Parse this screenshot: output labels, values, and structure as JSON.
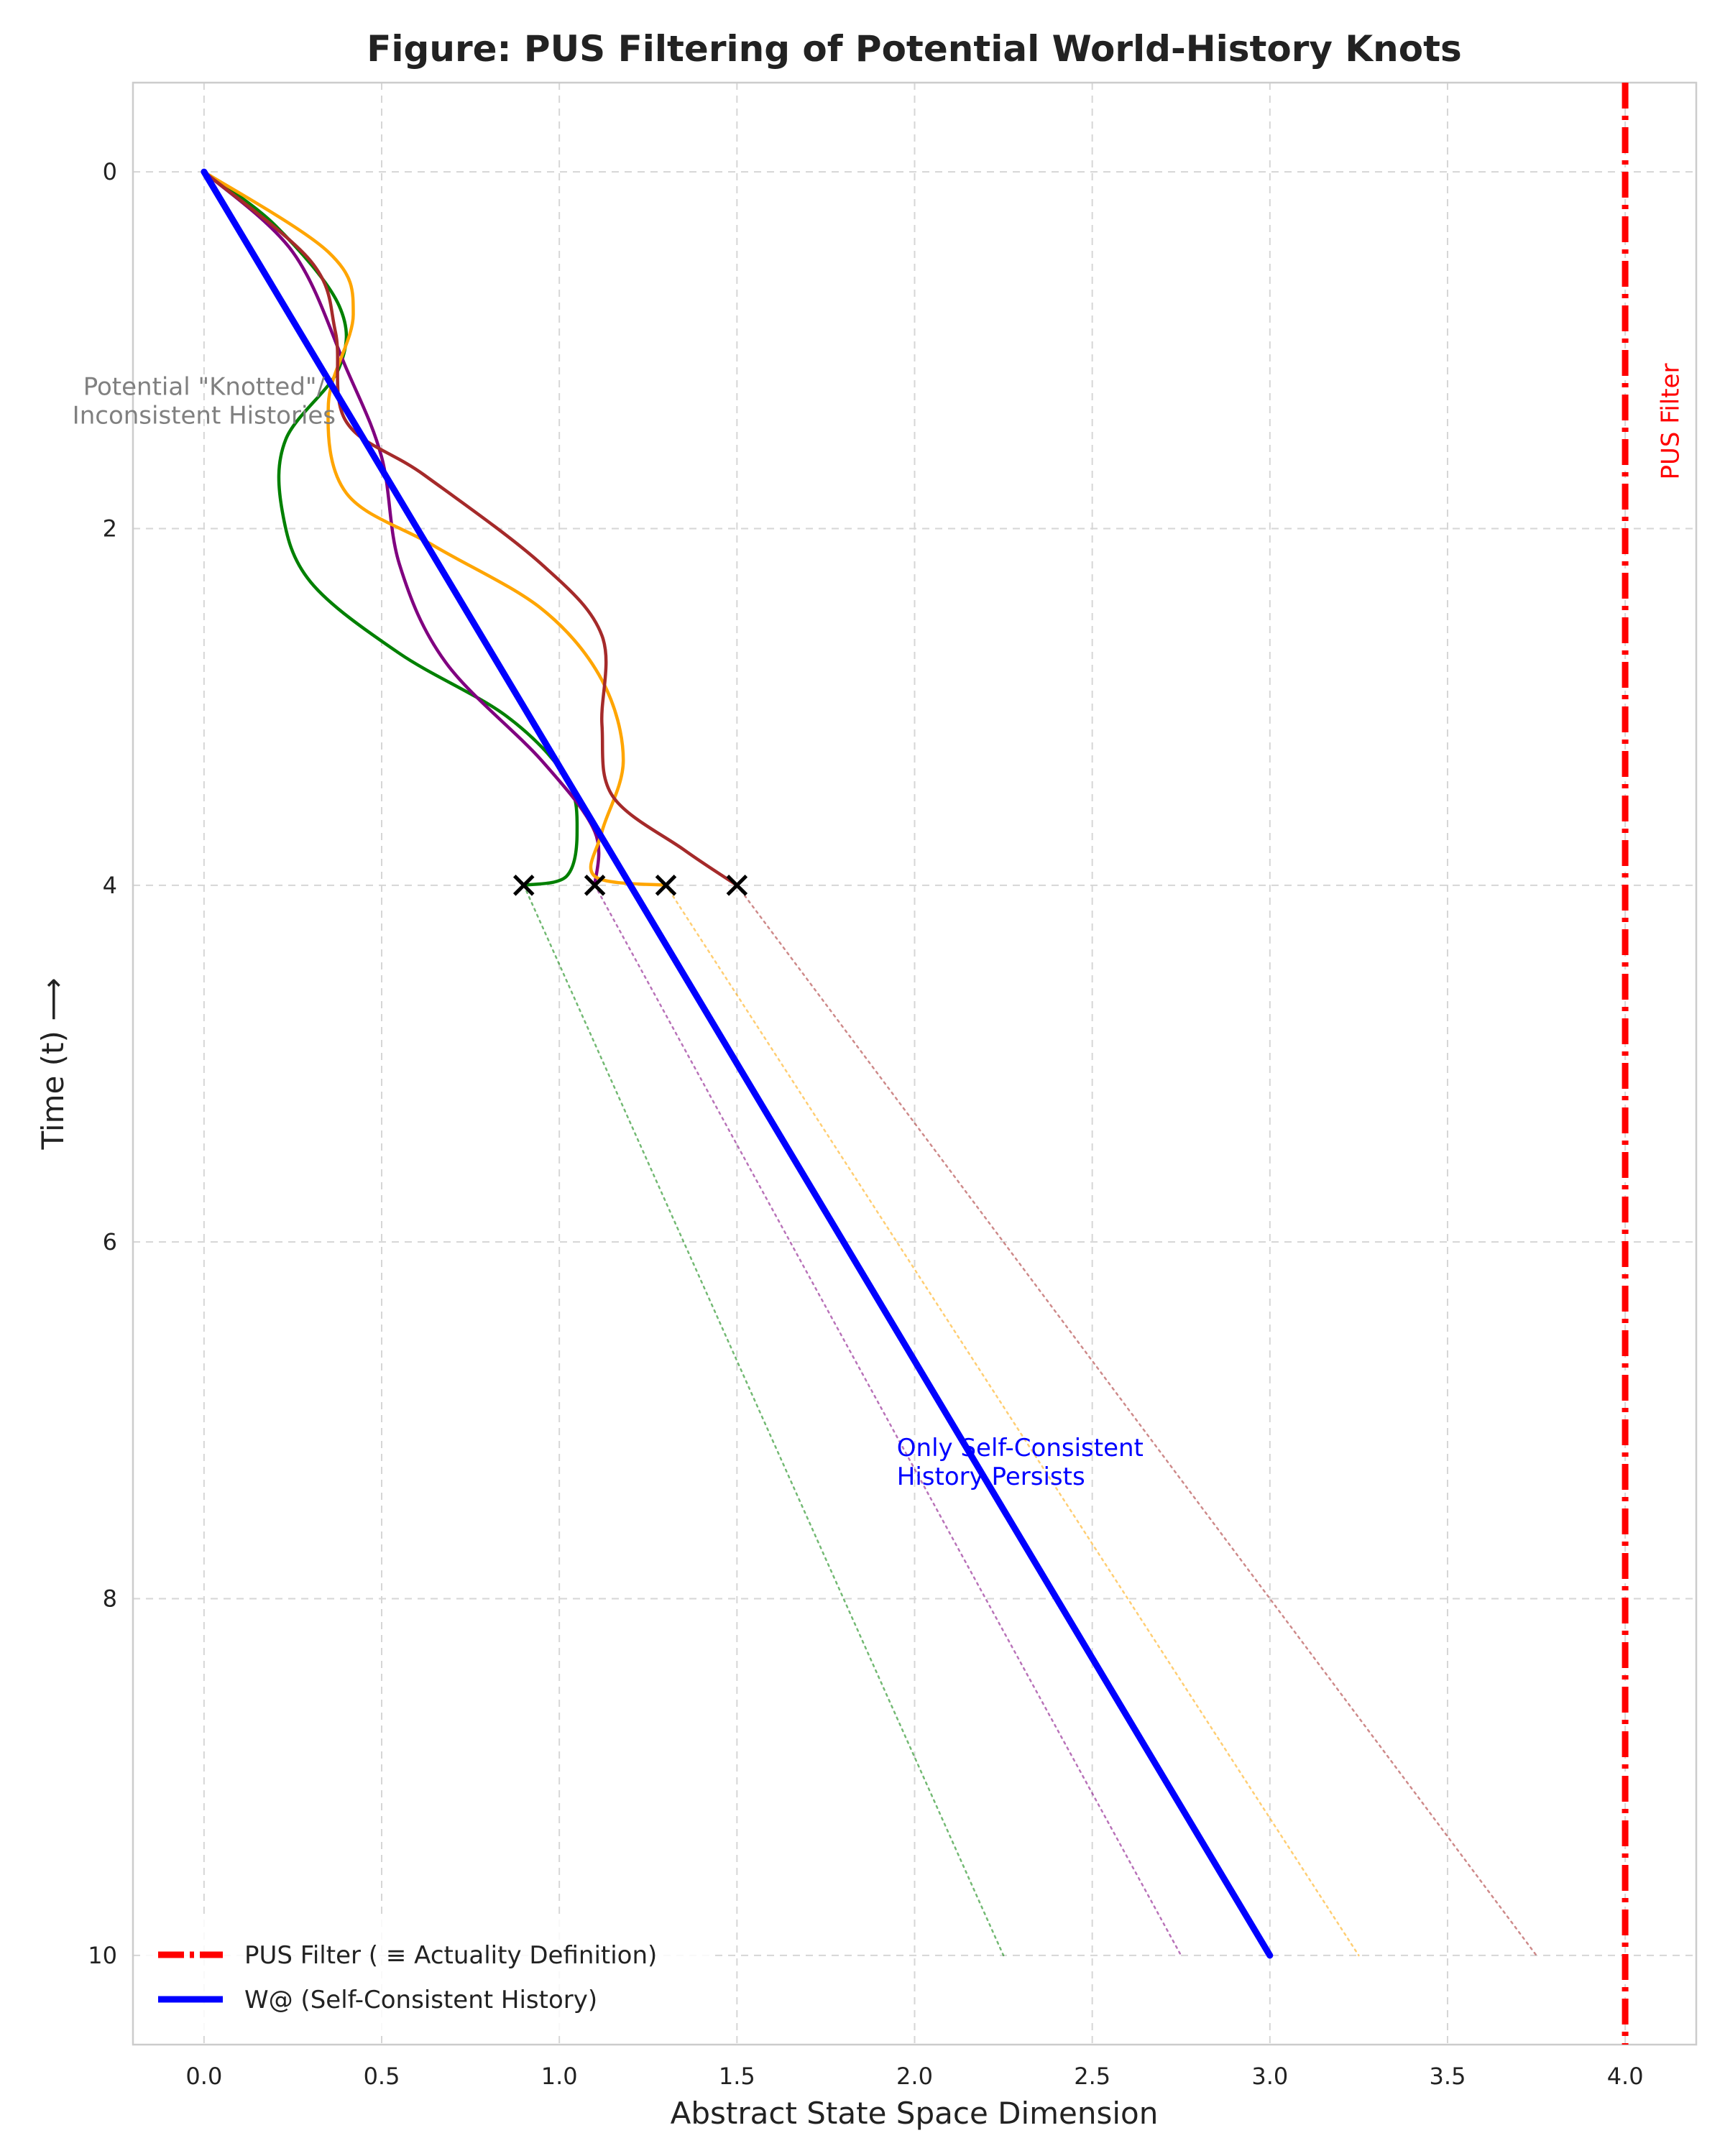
{
  "chart_data": {
    "type": "line",
    "title": "Figure: PUS Filtering of Potential World-History Knots",
    "xlabel": "Abstract State Space Dimension",
    "ylabel": "Time (t) ⟶",
    "xlim": [
      -0.2,
      4.2
    ],
    "ylim": [
      10.5,
      -0.5
    ],
    "y_inverted": true,
    "grid": true,
    "xticks": [
      "0.0",
      "0.5",
      "1.0",
      "1.5",
      "2.0",
      "2.5",
      "3.0",
      "3.5",
      "4.0"
    ],
    "yticks": [
      "0",
      "2",
      "4",
      "6",
      "8",
      "10"
    ],
    "legend_position": "bottom-left",
    "legend": [
      "PUS Filter ( ≡  Actuality Definition)",
      "W@ (Self-Consistent History)"
    ],
    "series": [
      {
        "name": "W@ (Self-Consistent History)",
        "color": "#0000ff",
        "style": "solid-thick",
        "points": [
          [
            0,
            0
          ],
          [
            3.0,
            10
          ]
        ]
      },
      {
        "name": "PUS Filter ( ≡  Actuality Definition)",
        "color": "#ff0000",
        "style": "dashdot",
        "points": [
          [
            4.0,
            -0.5
          ],
          [
            4.0,
            10.5
          ]
        ]
      },
      {
        "color": "#008000",
        "style": "solid",
        "points": [
          [
            0,
            0
          ],
          [
            0.2,
            0.3
          ],
          [
            0.38,
            0.75
          ],
          [
            0.38,
            1.1
          ],
          [
            0.23,
            1.5
          ],
          [
            0.22,
            1.9
          ],
          [
            0.3,
            2.3
          ],
          [
            0.55,
            2.7
          ],
          [
            0.85,
            3.05
          ],
          [
            1.02,
            3.4
          ],
          [
            1.05,
            3.7
          ],
          [
            1.02,
            3.95
          ],
          [
            0.9,
            4.0
          ]
        ]
      },
      {
        "color": "#800080",
        "style": "solid",
        "points": [
          [
            0,
            0
          ],
          [
            0.25,
            0.45
          ],
          [
            0.4,
            1.1
          ],
          [
            0.5,
            1.6
          ],
          [
            0.55,
            2.2
          ],
          [
            0.68,
            2.75
          ],
          [
            0.95,
            3.3
          ],
          [
            1.1,
            3.7
          ],
          [
            1.1,
            4.0
          ]
        ]
      },
      {
        "color": "#ffa500",
        "style": "solid",
        "points": [
          [
            0,
            0
          ],
          [
            0.35,
            0.45
          ],
          [
            0.42,
            0.8
          ],
          [
            0.35,
            1.3
          ],
          [
            0.4,
            1.8
          ],
          [
            0.65,
            2.1
          ],
          [
            0.95,
            2.45
          ],
          [
            1.12,
            2.85
          ],
          [
            1.18,
            3.3
          ],
          [
            1.12,
            3.7
          ],
          [
            1.1,
            3.95
          ],
          [
            1.3,
            4.0
          ]
        ]
      },
      {
        "color": "#a52a2a",
        "style": "solid",
        "points": [
          [
            0,
            0
          ],
          [
            0.3,
            0.5
          ],
          [
            0.37,
            0.9
          ],
          [
            0.4,
            1.4
          ],
          [
            0.62,
            1.7
          ],
          [
            0.95,
            2.2
          ],
          [
            1.12,
            2.6
          ],
          [
            1.12,
            3.1
          ],
          [
            1.15,
            3.5
          ],
          [
            1.35,
            3.8
          ],
          [
            1.5,
            4.0
          ]
        ]
      },
      {
        "color": "#008000",
        "style": "dotted",
        "points": [
          [
            0.9,
            4
          ],
          [
            2.25,
            10
          ]
        ]
      },
      {
        "color": "#800080",
        "style": "dotted",
        "points": [
          [
            1.1,
            4
          ],
          [
            2.75,
            10
          ]
        ]
      },
      {
        "color": "#ffa500",
        "style": "dotted",
        "points": [
          [
            1.3,
            4
          ],
          [
            3.25,
            10
          ]
        ]
      },
      {
        "color": "#a52a2a",
        "style": "dotted",
        "points": [
          [
            1.5,
            4
          ],
          [
            3.75,
            10
          ]
        ]
      }
    ],
    "markers": [
      {
        "x": 0.9,
        "y": 4,
        "symbol": "x"
      },
      {
        "x": 1.1,
        "y": 4,
        "symbol": "x"
      },
      {
        "x": 1.3,
        "y": 4,
        "symbol": "x"
      },
      {
        "x": 1.5,
        "y": 4,
        "symbol": "x"
      }
    ],
    "annotations": [
      {
        "lines": [
          "Potential \"Knotted\"/",
          "Inconsistent Histories"
        ],
        "x": 0.0,
        "y": 1.25,
        "color": "#808080",
        "align": "center"
      },
      {
        "lines": [
          "Only Self-Consistent",
          "History Persists"
        ],
        "x": 1.95,
        "y": 7.2,
        "color": "#0000ff",
        "align": "left"
      },
      {
        "lines": [
          "PUS Filter"
        ],
        "x": 4.15,
        "y": 1.4,
        "color": "#ff0000",
        "rotate": -90
      }
    ]
  }
}
